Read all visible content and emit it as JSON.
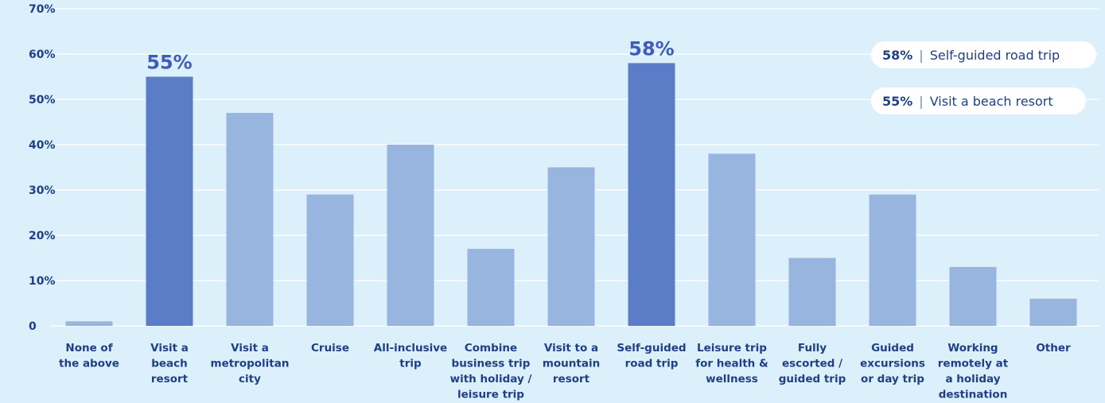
{
  "chart_data": {
    "type": "bar",
    "yticks": [
      "0",
      "10%",
      "20%",
      "30%",
      "40%",
      "50%",
      "60%",
      "70%"
    ],
    "ylim": [
      0,
      70
    ],
    "grid": true,
    "colors": {
      "highlight": "#5b7cc6",
      "normal": "#98b5e0",
      "grid": "#ffffff",
      "text": "#1f3f86",
      "background": "#dbf0fb"
    },
    "categories": [
      [
        "None of",
        "the above"
      ],
      [
        "Visit a",
        "beach",
        "resort"
      ],
      [
        "Visit a",
        "metropolitan",
        "city"
      ],
      [
        "Cruise"
      ],
      [
        "All-inclusive",
        "trip"
      ],
      [
        "Combine",
        "business trip",
        "with holiday /",
        "leisure trip"
      ],
      [
        "Visit to a",
        "mountain",
        "resort"
      ],
      [
        "Self-guided",
        "road trip"
      ],
      [
        "Leisure trip",
        "for health &",
        "wellness"
      ],
      [
        "Fully",
        "escorted /",
        "guided trip"
      ],
      [
        "Guided",
        "excursions",
        "or day trip"
      ],
      [
        "Working",
        "remotely at",
        "a holiday",
        "destination"
      ],
      [
        "Other"
      ]
    ],
    "values": [
      1,
      55,
      47,
      29,
      40,
      17,
      35,
      58,
      38,
      15,
      29,
      13,
      6
    ],
    "highlighted": [
      1,
      7
    ],
    "data_labels": {
      "1": "55%",
      "7": "58%"
    }
  },
  "callouts": [
    {
      "value": "58%",
      "sep": "|",
      "label": "Self-guided road trip"
    },
    {
      "value": "55%",
      "sep": "|",
      "label": "Visit a beach resort"
    }
  ]
}
